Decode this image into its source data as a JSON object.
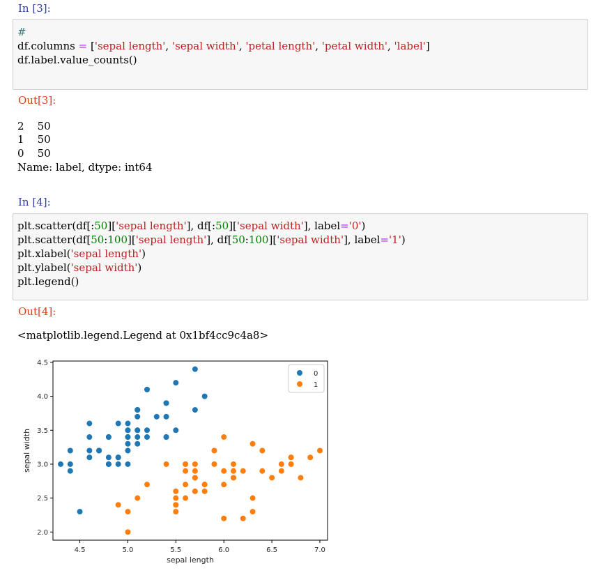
{
  "cells": {
    "in3": {
      "prompt": "In [3]:",
      "line1": "#",
      "line2_a": "df.columns ",
      "line2_eq": "=",
      "line2_b": " [",
      "line2_s1": "'sepal length'",
      "line2_s2": "'sepal width'",
      "line2_s3": "'petal length'",
      "line2_s4": "'petal width'",
      "line2_s5": "'label'",
      "line2_end": "]",
      "line3": "df.label.value_counts()"
    },
    "out3": {
      "prompt": "Out[3]:",
      "rows": [
        "2    50",
        "1    50",
        "0    50"
      ],
      "footer": "Name: label, dtype: int64"
    },
    "in4": {
      "prompt": "In [4]:",
      "l1_a": "plt.scatter(df[:",
      "l1_n1": "50",
      "l1_b": "][",
      "l1_s1": "'sepal length'",
      "l1_c": "], df[:",
      "l1_n2": "50",
      "l1_d": "][",
      "l1_s2": "'sepal width'",
      "l1_e": "], label",
      "l1_eq": "=",
      "l1_s3": "'0'",
      "l1_f": ")",
      "l2_a": "plt.scatter(df[",
      "l2_n1": "50",
      "l2_colon": ":",
      "l2_n2": "100",
      "l2_b": "][",
      "l2_s1": "'sepal length'",
      "l2_c": "], df[",
      "l2_n3": "50",
      "l2_colon2": ":",
      "l2_n4": "100",
      "l2_d": "][",
      "l2_s2": "'sepal width'",
      "l2_e": "], label",
      "l2_eq": "=",
      "l2_s3": "'1'",
      "l2_f": ")",
      "l3_a": "plt.xlabel(",
      "l3_s": "'sepal length'",
      "l3_b": ")",
      "l4_a": "plt.ylabel(",
      "l4_s": "'sepal width'",
      "l4_b": ")",
      "l5": "plt.legend()"
    },
    "out4": {
      "prompt": "Out[4]:",
      "repr": "<matplotlib.legend.Legend at 0x1bf4cc9c4a8>"
    }
  },
  "colors": {
    "series0": "#1f77b4",
    "series1": "#ff7f0e"
  },
  "chart_data": {
    "type": "scatter",
    "xlabel": "sepal length",
    "ylabel": "sepal width",
    "xlim": [
      4.22,
      7.08
    ],
    "ylim": [
      1.88,
      4.52
    ],
    "xticks": [
      "4.5",
      "5.0",
      "5.5",
      "6.0",
      "6.5",
      "7.0"
    ],
    "yticks": [
      "2.0",
      "2.5",
      "3.0",
      "3.5",
      "4.0",
      "4.5"
    ],
    "legend_position": "top-right",
    "grid": false,
    "series": [
      {
        "name": "0",
        "points": [
          [
            5.1,
            3.5
          ],
          [
            4.9,
            3.0
          ],
          [
            4.7,
            3.2
          ],
          [
            4.6,
            3.1
          ],
          [
            5.0,
            3.6
          ],
          [
            5.4,
            3.9
          ],
          [
            4.6,
            3.4
          ],
          [
            5.0,
            3.4
          ],
          [
            4.4,
            2.9
          ],
          [
            4.9,
            3.1
          ],
          [
            5.4,
            3.7
          ],
          [
            4.8,
            3.4
          ],
          [
            4.8,
            3.0
          ],
          [
            4.3,
            3.0
          ],
          [
            5.8,
            4.0
          ],
          [
            5.7,
            4.4
          ],
          [
            5.4,
            3.9
          ],
          [
            5.1,
            3.5
          ],
          [
            5.7,
            3.8
          ],
          [
            5.1,
            3.8
          ],
          [
            5.4,
            3.4
          ],
          [
            5.1,
            3.7
          ],
          [
            4.6,
            3.6
          ],
          [
            5.1,
            3.3
          ],
          [
            4.8,
            3.4
          ],
          [
            5.0,
            3.0
          ],
          [
            5.0,
            3.4
          ],
          [
            5.2,
            3.5
          ],
          [
            5.2,
            3.4
          ],
          [
            4.7,
            3.2
          ],
          [
            4.8,
            3.1
          ],
          [
            5.4,
            3.4
          ],
          [
            5.2,
            4.1
          ],
          [
            5.5,
            4.2
          ],
          [
            4.9,
            3.1
          ],
          [
            5.0,
            3.2
          ],
          [
            5.5,
            3.5
          ],
          [
            4.9,
            3.6
          ],
          [
            4.4,
            3.0
          ],
          [
            5.1,
            3.4
          ],
          [
            5.0,
            3.5
          ],
          [
            4.5,
            2.3
          ],
          [
            4.4,
            3.2
          ],
          [
            5.0,
            3.5
          ],
          [
            5.1,
            3.8
          ],
          [
            4.8,
            3.0
          ],
          [
            5.1,
            3.8
          ],
          [
            4.6,
            3.2
          ],
          [
            5.3,
            3.7
          ],
          [
            5.0,
            3.3
          ]
        ]
      },
      {
        "name": "1",
        "points": [
          [
            7.0,
            3.2
          ],
          [
            6.4,
            3.2
          ],
          [
            6.9,
            3.1
          ],
          [
            5.5,
            2.3
          ],
          [
            6.5,
            2.8
          ],
          [
            5.7,
            2.8
          ],
          [
            6.3,
            3.3
          ],
          [
            4.9,
            2.4
          ],
          [
            6.6,
            2.9
          ],
          [
            5.2,
            2.7
          ],
          [
            5.0,
            2.0
          ],
          [
            5.9,
            3.0
          ],
          [
            6.0,
            2.2
          ],
          [
            6.1,
            2.9
          ],
          [
            5.6,
            2.9
          ],
          [
            6.7,
            3.1
          ],
          [
            5.6,
            3.0
          ],
          [
            5.8,
            2.7
          ],
          [
            6.2,
            2.2
          ],
          [
            5.6,
            2.5
          ],
          [
            5.9,
            3.2
          ],
          [
            6.1,
            2.8
          ],
          [
            6.3,
            2.5
          ],
          [
            6.1,
            2.8
          ],
          [
            6.4,
            2.9
          ],
          [
            6.6,
            3.0
          ],
          [
            6.8,
            2.8
          ],
          [
            6.7,
            3.0
          ],
          [
            6.0,
            2.9
          ],
          [
            5.7,
            2.6
          ],
          [
            5.5,
            2.4
          ],
          [
            5.5,
            2.4
          ],
          [
            5.8,
            2.7
          ],
          [
            6.0,
            2.7
          ],
          [
            5.4,
            3.0
          ],
          [
            6.0,
            3.4
          ],
          [
            6.7,
            3.1
          ],
          [
            6.3,
            2.3
          ],
          [
            5.6,
            3.0
          ],
          [
            5.5,
            2.5
          ],
          [
            5.5,
            2.6
          ],
          [
            6.1,
            3.0
          ],
          [
            5.8,
            2.6
          ],
          [
            5.0,
            2.3
          ],
          [
            5.6,
            2.7
          ],
          [
            5.7,
            3.0
          ],
          [
            5.7,
            2.9
          ],
          [
            6.2,
            2.9
          ],
          [
            5.1,
            2.5
          ],
          [
            5.7,
            2.8
          ]
        ]
      }
    ]
  }
}
